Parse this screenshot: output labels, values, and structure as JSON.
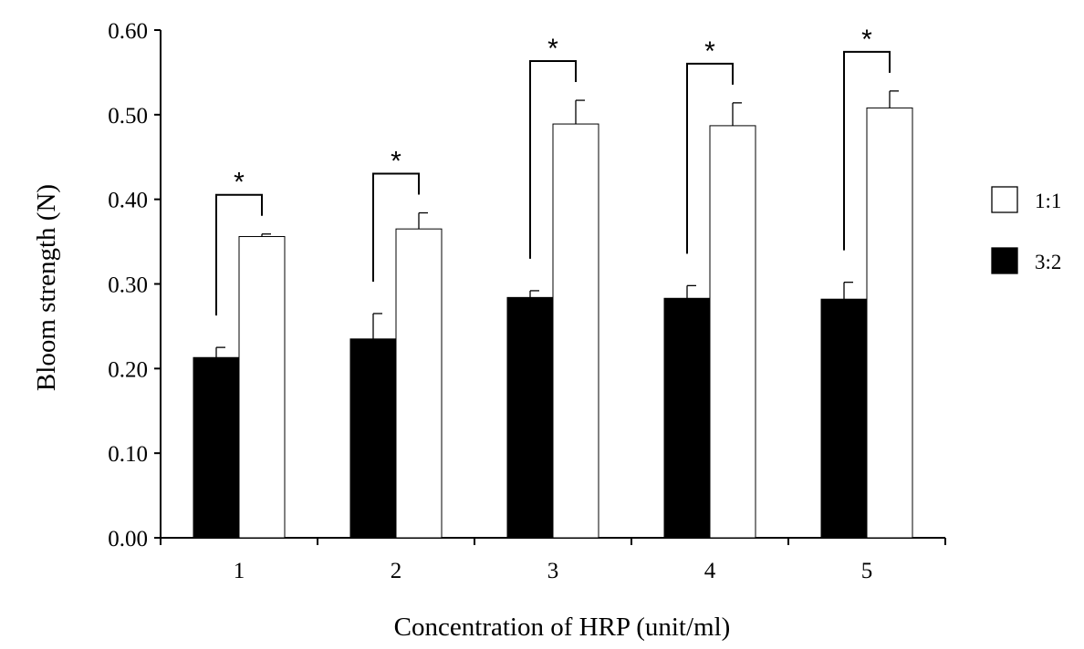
{
  "chart_data": {
    "type": "bar",
    "title": "",
    "xlabel": "Concentration of HRP (unit/ml)",
    "ylabel": "Bloom strength (N)",
    "ylim": [
      0,
      0.6
    ],
    "yticks": [
      "0.00",
      "0.10",
      "0.20",
      "0.30",
      "0.40",
      "0.50",
      "0.60"
    ],
    "categories": [
      "1",
      "2",
      "3",
      "4",
      "5"
    ],
    "series": [
      {
        "name": "3:2",
        "color": "#000000",
        "values": [
          0.213,
          0.235,
          0.284,
          0.283,
          0.282
        ],
        "errors": [
          0.012,
          0.03,
          0.008,
          0.015,
          0.02
        ]
      },
      {
        "name": "1:1",
        "color": "#ffffff",
        "values": [
          0.356,
          0.365,
          0.489,
          0.487,
          0.508
        ],
        "errors": [
          0.003,
          0.019,
          0.028,
          0.027,
          0.02
        ]
      }
    ],
    "significance": {
      "label": "*",
      "pairs": [
        0,
        1,
        2,
        3,
        4
      ]
    },
    "legend": {
      "placement": "right",
      "order": [
        "1:1",
        "3:2"
      ]
    },
    "grid": false
  }
}
